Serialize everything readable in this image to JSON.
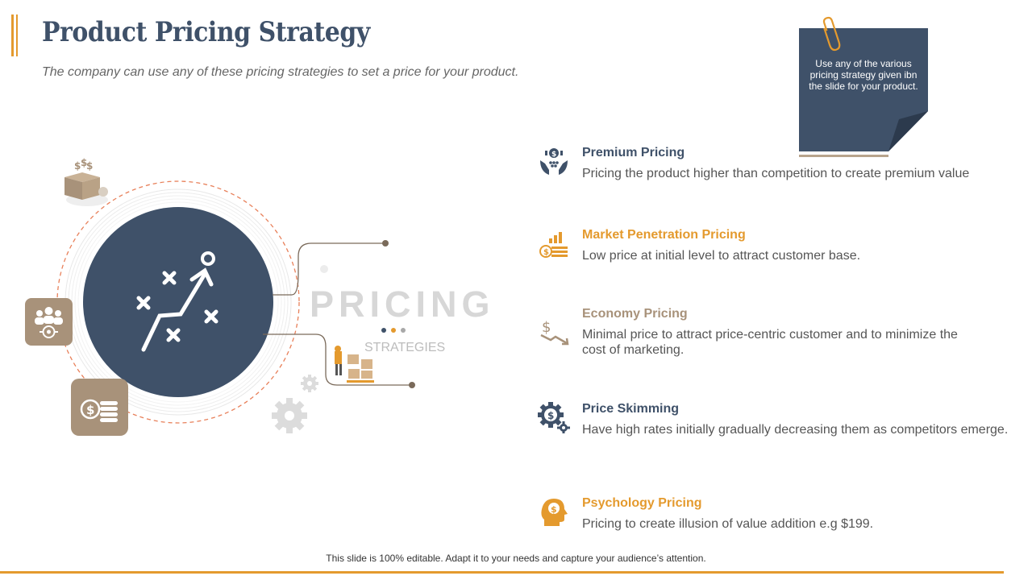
{
  "header": {
    "title": "Product Pricing Strategy",
    "subtitle": "The company can use any of these pricing strategies to set a price for your product."
  },
  "note": {
    "text": "Use any of the various pricing strategy given ibn the slide for your product.",
    "icon": "paperclip-icon"
  },
  "hero": {
    "label": "PRICING",
    "sublabel": "STRATEGIES"
  },
  "strategies": [
    {
      "title": "Premium Pricing",
      "description": "Pricing the product higher than competition to create premium value",
      "icon": "hands-money-icon",
      "color": "#3f5169"
    },
    {
      "title": "Market Penetration Pricing",
      "description": "Low price at initial level to attract customer base.",
      "icon": "coin-growth-icon",
      "color": "#e49a2e"
    },
    {
      "title": "Economy Pricing",
      "description": "Minimal price to attract price-centric customer and to minimize the cost of marketing.",
      "icon": "dollar-down-icon",
      "color": "#a8927a"
    },
    {
      "title": "Price Skimming",
      "description": "Have high rates initially gradually decreasing them as competitors emerge.",
      "icon": "dollar-gear-icon",
      "color": "#3f5169"
    },
    {
      "title": "Psychology Pricing",
      "description": "Pricing to create illusion of value addition e.g $199.",
      "icon": "head-dollar-icon",
      "color": "#e49a2e"
    }
  ],
  "footer": {
    "text": "This slide is 100% editable. Adapt it to your needs and capture your audience’s attention."
  },
  "colors": {
    "navy": "#3f5169",
    "orange": "#e49a2e",
    "tan": "#a8927a"
  }
}
